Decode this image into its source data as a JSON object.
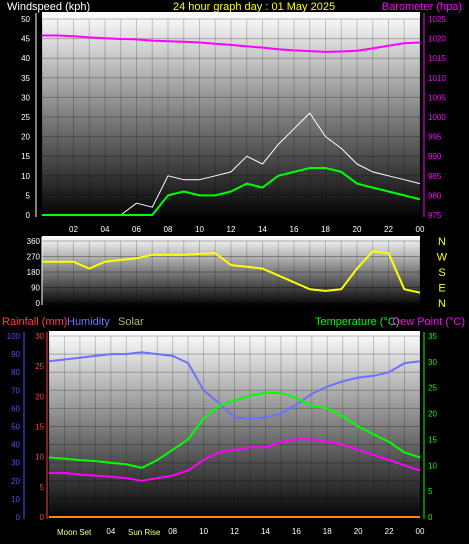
{
  "header": {
    "windspeed_label": "Windspeed (kph)",
    "title": "24 hour graph day : 01 May 2025",
    "barometer_label": "Barometer (hpa)"
  },
  "colors": {
    "wind_gust": "#ffffff",
    "wind_avg": "#00ff00",
    "barometer": "#ff00ff",
    "wind_dir": "#ffff00",
    "temperature": "#00ff00",
    "dewpoint": "#ff00ff",
    "humidity": "#6f6fff",
    "rainfall": "#ff4040",
    "solar": "#ffff88",
    "axis_right_top": "#ff00ff",
    "axis_left_bottom": "#4f4fff",
    "axis_right_bottom": "#00ff00"
  },
  "x_ticks": [
    "02",
    "04",
    "06",
    "08",
    "10",
    "12",
    "14",
    "16",
    "18",
    "20",
    "22",
    "00"
  ],
  "chart_data": [
    {
      "type": "line",
      "title": "24 hour graph day : 01 May 2025",
      "ylabel": "Windspeed (kph)",
      "ylabel_right": "Barometer (hpa)",
      "ylim": [
        0,
        50
      ],
      "ylim_right": [
        975,
        1025
      ],
      "y_ticks": [
        0,
        5,
        10,
        15,
        20,
        25,
        30,
        35,
        40,
        45,
        50
      ],
      "y_ticks_right": [
        975,
        980,
        985,
        990,
        995,
        1000,
        1005,
        1010,
        1015,
        1020,
        1025
      ],
      "x": [
        0,
        1,
        2,
        3,
        4,
        5,
        6,
        7,
        8,
        9,
        10,
        11,
        12,
        13,
        14,
        15,
        16,
        17,
        18,
        19,
        20,
        21,
        22,
        23,
        24
      ],
      "series": [
        {
          "name": "Windspeed (kph)",
          "axis": "left",
          "values": [
            0,
            0,
            0,
            0,
            0,
            0,
            0,
            0,
            5,
            6,
            5,
            5,
            6,
            8,
            7,
            10,
            11,
            12,
            12,
            11,
            8,
            7,
            6,
            5,
            4
          ]
        },
        {
          "name": "Gust",
          "axis": "left",
          "values": [
            0,
            0,
            0,
            0,
            0,
            0,
            3,
            2,
            10,
            9,
            9,
            10,
            11,
            15,
            13,
            18,
            22,
            26,
            20,
            17,
            13,
            11,
            10,
            9,
            8
          ]
        },
        {
          "name": "Barometer (hpa)",
          "axis": "right",
          "values": [
            1020.8,
            1020.8,
            1020.6,
            1020.3,
            1020.1,
            1019.9,
            1019.8,
            1019.5,
            1019.3,
            1019.2,
            1019.0,
            1018.7,
            1018.4,
            1018.0,
            1017.7,
            1017.3,
            1017.0,
            1016.8,
            1016.6,
            1016.7,
            1016.9,
            1017.5,
            1018.2,
            1018.8,
            1019.0
          ]
        }
      ]
    },
    {
      "type": "scatter",
      "title": "",
      "ylim": [
        0,
        360
      ],
      "y_ticks": [
        0,
        90,
        180,
        270,
        360
      ],
      "direction_labels": [
        "N",
        "W",
        "S",
        "E",
        "N"
      ],
      "x": [
        0,
        1,
        2,
        3,
        4,
        5,
        6,
        7,
        8,
        9,
        10,
        11,
        12,
        13,
        14,
        15,
        16,
        17,
        18,
        19,
        20,
        21,
        22,
        23,
        24
      ],
      "series": [
        {
          "name": "Wind direction",
          "values": [
            240,
            240,
            240,
            200,
            240,
            250,
            260,
            280,
            280,
            280,
            285,
            290,
            220,
            210,
            200,
            160,
            120,
            80,
            70,
            80,
            200,
            300,
            290,
            80,
            60
          ]
        }
      ]
    },
    {
      "type": "line",
      "title": "",
      "ylabel_left": "Rainfall (mm)",
      "ylabel_left2": "Humidity",
      "ylabel_left3": "Solar",
      "ylabel_right": "Temperature (°C)",
      "ylabel_right2": "Dew Point (°C)",
      "ylim": [
        0,
        100
      ],
      "ylim_rain": [
        0,
        30
      ],
      "ylim_right": [
        0,
        35
      ],
      "y_ticks_humidity": [
        0,
        10,
        20,
        30,
        40,
        50,
        60,
        70,
        80,
        90,
        100
      ],
      "y_ticks_rain": [
        0,
        5,
        10,
        15,
        20,
        25,
        30
      ],
      "y_ticks_right": [
        0,
        5,
        10,
        15,
        20,
        25,
        30,
        35
      ],
      "x_labels": [
        "Moon Set",
        "Sun Rise"
      ],
      "x": [
        0,
        1,
        2,
        3,
        4,
        5,
        6,
        7,
        8,
        9,
        10,
        11,
        12,
        13,
        14,
        15,
        16,
        17,
        18,
        19,
        20,
        21,
        22,
        23,
        24
      ],
      "series": [
        {
          "name": "Humidity",
          "axis": "left",
          "values": [
            86,
            87,
            88,
            89,
            90,
            90,
            91,
            90,
            89,
            85,
            70,
            63,
            55,
            54,
            55,
            57,
            62,
            68,
            72,
            75,
            77,
            78,
            80,
            85,
            86
          ]
        },
        {
          "name": "Temperature (°C)",
          "axis": "right",
          "values": [
            11.5,
            11.3,
            11.0,
            10.8,
            10.5,
            10.2,
            9.5,
            11.0,
            13.0,
            15.0,
            19.0,
            21.5,
            22.5,
            23.5,
            24.0,
            24.0,
            23.0,
            21.5,
            21.0,
            19.5,
            17.5,
            16.0,
            14.5,
            12.5,
            11.5
          ]
        },
        {
          "name": "Dew Point (°C)",
          "axis": "right",
          "values": [
            8.5,
            8.5,
            8.2,
            8.0,
            7.8,
            7.5,
            7.0,
            7.5,
            8.0,
            9.0,
            11.0,
            12.5,
            13.0,
            13.5,
            13.5,
            14.5,
            15.0,
            15.0,
            14.5,
            14.0,
            13.0,
            12.0,
            11.0,
            10.0,
            9.0
          ]
        },
        {
          "name": "Rainfall (mm)",
          "axis": "rain",
          "values": [
            0,
            0,
            0,
            0,
            0,
            0,
            0,
            0,
            0,
            0,
            0,
            0,
            0,
            0,
            0,
            0,
            0,
            0,
            0,
            0,
            0,
            0,
            0,
            0,
            0
          ]
        }
      ]
    }
  ]
}
